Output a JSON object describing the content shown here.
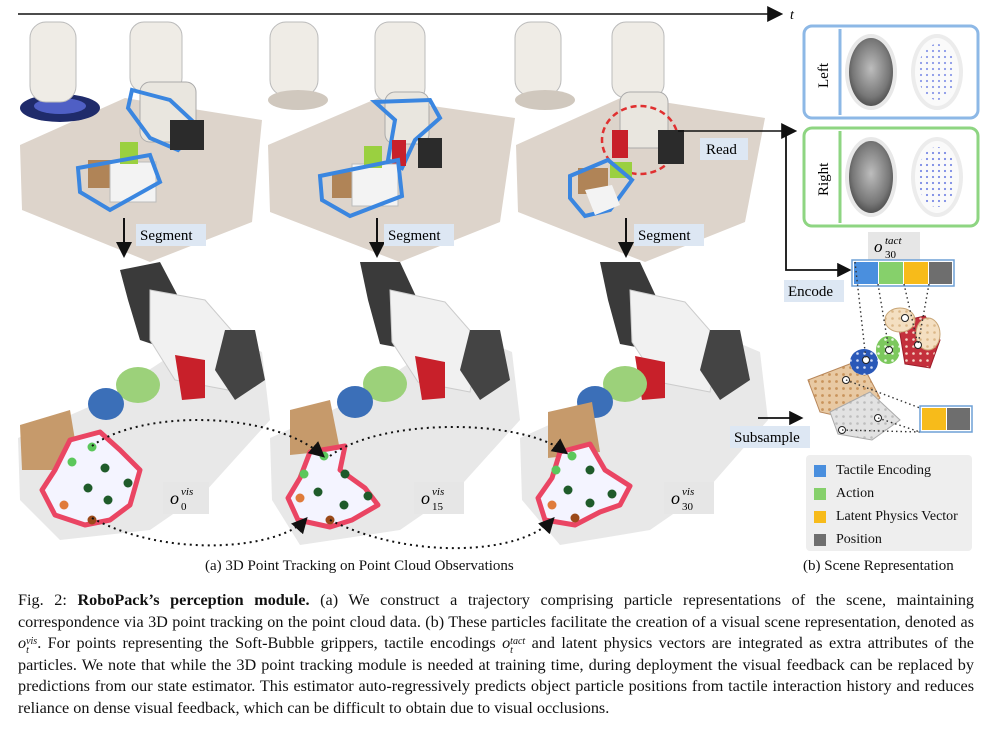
{
  "time_axis": {
    "label": "t"
  },
  "labels": {
    "segment": "Segment",
    "read": "Read",
    "encode": "Encode",
    "subsample": "Subsample",
    "left": "Left",
    "right": "Right",
    "o_vis_base": "o",
    "o_vis_sup": "vis",
    "o_vis_subs": [
      "0",
      "15",
      "30"
    ],
    "o_tact_base": "o",
    "o_tact_sup": "tact",
    "o_tact_sub": "30"
  },
  "legend": {
    "items": [
      {
        "label": "Tactile Encoding",
        "color": "#4a8fde"
      },
      {
        "label": "Action",
        "color": "#86d06b"
      },
      {
        "label": "Latent Physics Vector",
        "color": "#f7bb1a"
      },
      {
        "label": "Position",
        "color": "#6e6e6e"
      }
    ]
  },
  "subcaptions": {
    "a": "(a) 3D Point Tracking on Point Cloud Observations",
    "b": "(b) Scene Representation"
  },
  "caption": {
    "prefix": "Fig. 2: ",
    "bold": "RoboPack’s perception module.",
    "part1": " (a) We construct a trajectory comprising particle representations of the scene, maintaining correspondence via 3D point tracking on the point cloud data. (b) These particles facilitate the creation of a visual scene representation, denoted as ",
    "sym1_base": "o",
    "sym1_sub": "t",
    "sym1_sup": "vis",
    "part2": ". For points representing the Soft-Bubble grippers, tactile encodings ",
    "sym2_base": "o",
    "sym2_sub": "t",
    "sym2_sup": "tact",
    "part3": " and latent physics vectors are integrated as extra attributes of the particles. We note that while the 3D point tracking module is needed at training time, during deployment the visual feedback can be replaced by predictions from our state estimator. This estimator auto-regressively predicts object particle positions from tactile interaction history and reduces reliance on dense visual feedback, which can be difficult to obtain due to visual occlusions."
  }
}
